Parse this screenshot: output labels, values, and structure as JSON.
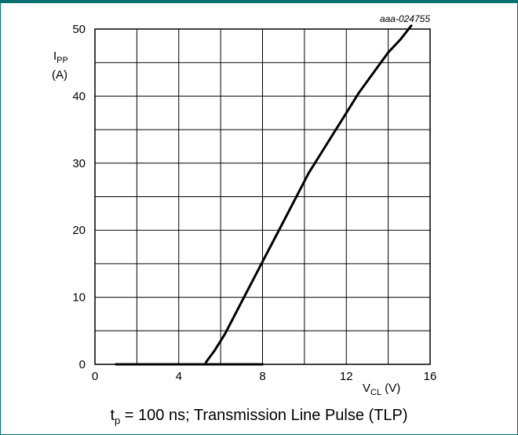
{
  "figure_ref": "aaa-024755",
  "caption": {
    "prefix_var": "t",
    "prefix_sub": "p",
    "text": " = 100 ns; Transmission Line Pulse (TLP)"
  },
  "chart_data": {
    "type": "line",
    "ylabel_main": "I",
    "ylabel_sub": "PP",
    "ylabel_unit": "(A)",
    "xlabel_main": "V",
    "xlabel_sub": "CL",
    "xlabel_unit": "(V)",
    "xlim": [
      0,
      16
    ],
    "ylim": [
      0,
      50
    ],
    "x_ticks": [
      0,
      4,
      8,
      12,
      16
    ],
    "y_ticks": [
      0,
      10,
      20,
      30,
      40,
      50
    ],
    "x_minor_step": 2,
    "y_minor_step": 5,
    "grid": true,
    "series": [
      {
        "x": [
          5.3,
          5.7,
          6.2,
          6.7,
          7.2,
          7.7,
          8.2,
          8.7,
          9.2,
          9.7,
          10.2,
          10.8,
          11.4,
          12.0,
          12.6,
          13.3,
          14.0,
          14.6,
          15.1
        ],
        "y": [
          0.3,
          2.0,
          4.5,
          7.5,
          10.5,
          13.5,
          16.5,
          19.5,
          22.5,
          25.5,
          28.5,
          31.5,
          34.5,
          37.5,
          40.5,
          43.5,
          46.5,
          48.5,
          50.5
        ]
      },
      {
        "x": [
          1.0,
          8.0
        ],
        "y": [
          0,
          0
        ]
      }
    ]
  }
}
